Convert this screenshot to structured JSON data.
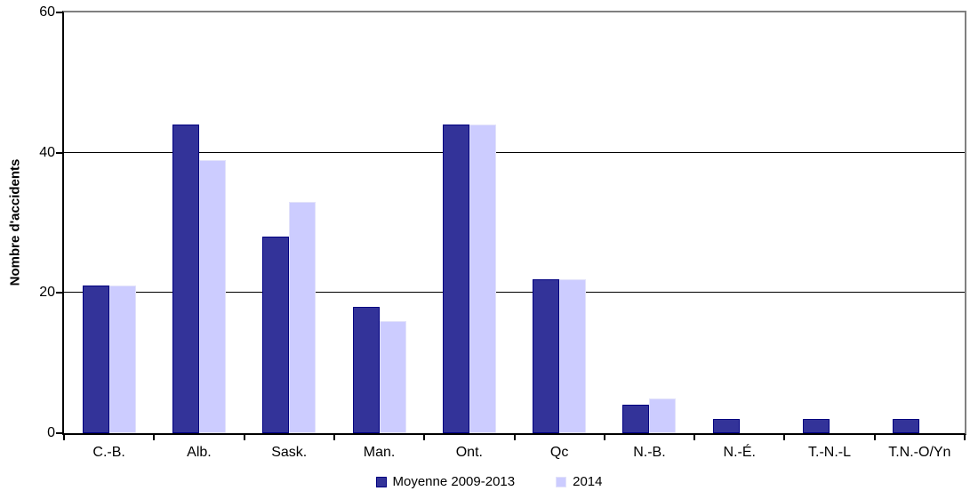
{
  "chart_data": {
    "type": "bar",
    "title": "",
    "xlabel": "",
    "ylabel": "Nombre d'accidents",
    "ylim": [
      0,
      60
    ],
    "yticks": [
      0,
      20,
      40,
      60
    ],
    "grid": true,
    "legend_position": "bottom",
    "background": "#FFFFFF",
    "plot_border_color": "#808080",
    "axis_color": "#000000",
    "categories": [
      "C.-B.",
      "Alb.",
      "Sask.",
      "Man.",
      "Ont.",
      "Qc",
      "N.-B.",
      "N.-É.",
      "T.-N.-L",
      "T.N.-O/Yn"
    ],
    "series": [
      {
        "name": "Moyenne 2009-2013",
        "color": "#333399",
        "border_color": "#000080",
        "values": [
          21,
          44,
          28,
          18,
          44,
          22,
          4,
          2,
          2,
          2
        ]
      },
      {
        "name": "2014",
        "color": "#CCCCFF",
        "border_color": "#E2E2FA",
        "values": [
          21,
          39,
          33,
          16,
          44,
          22,
          5,
          0,
          0,
          0
        ]
      }
    ]
  }
}
